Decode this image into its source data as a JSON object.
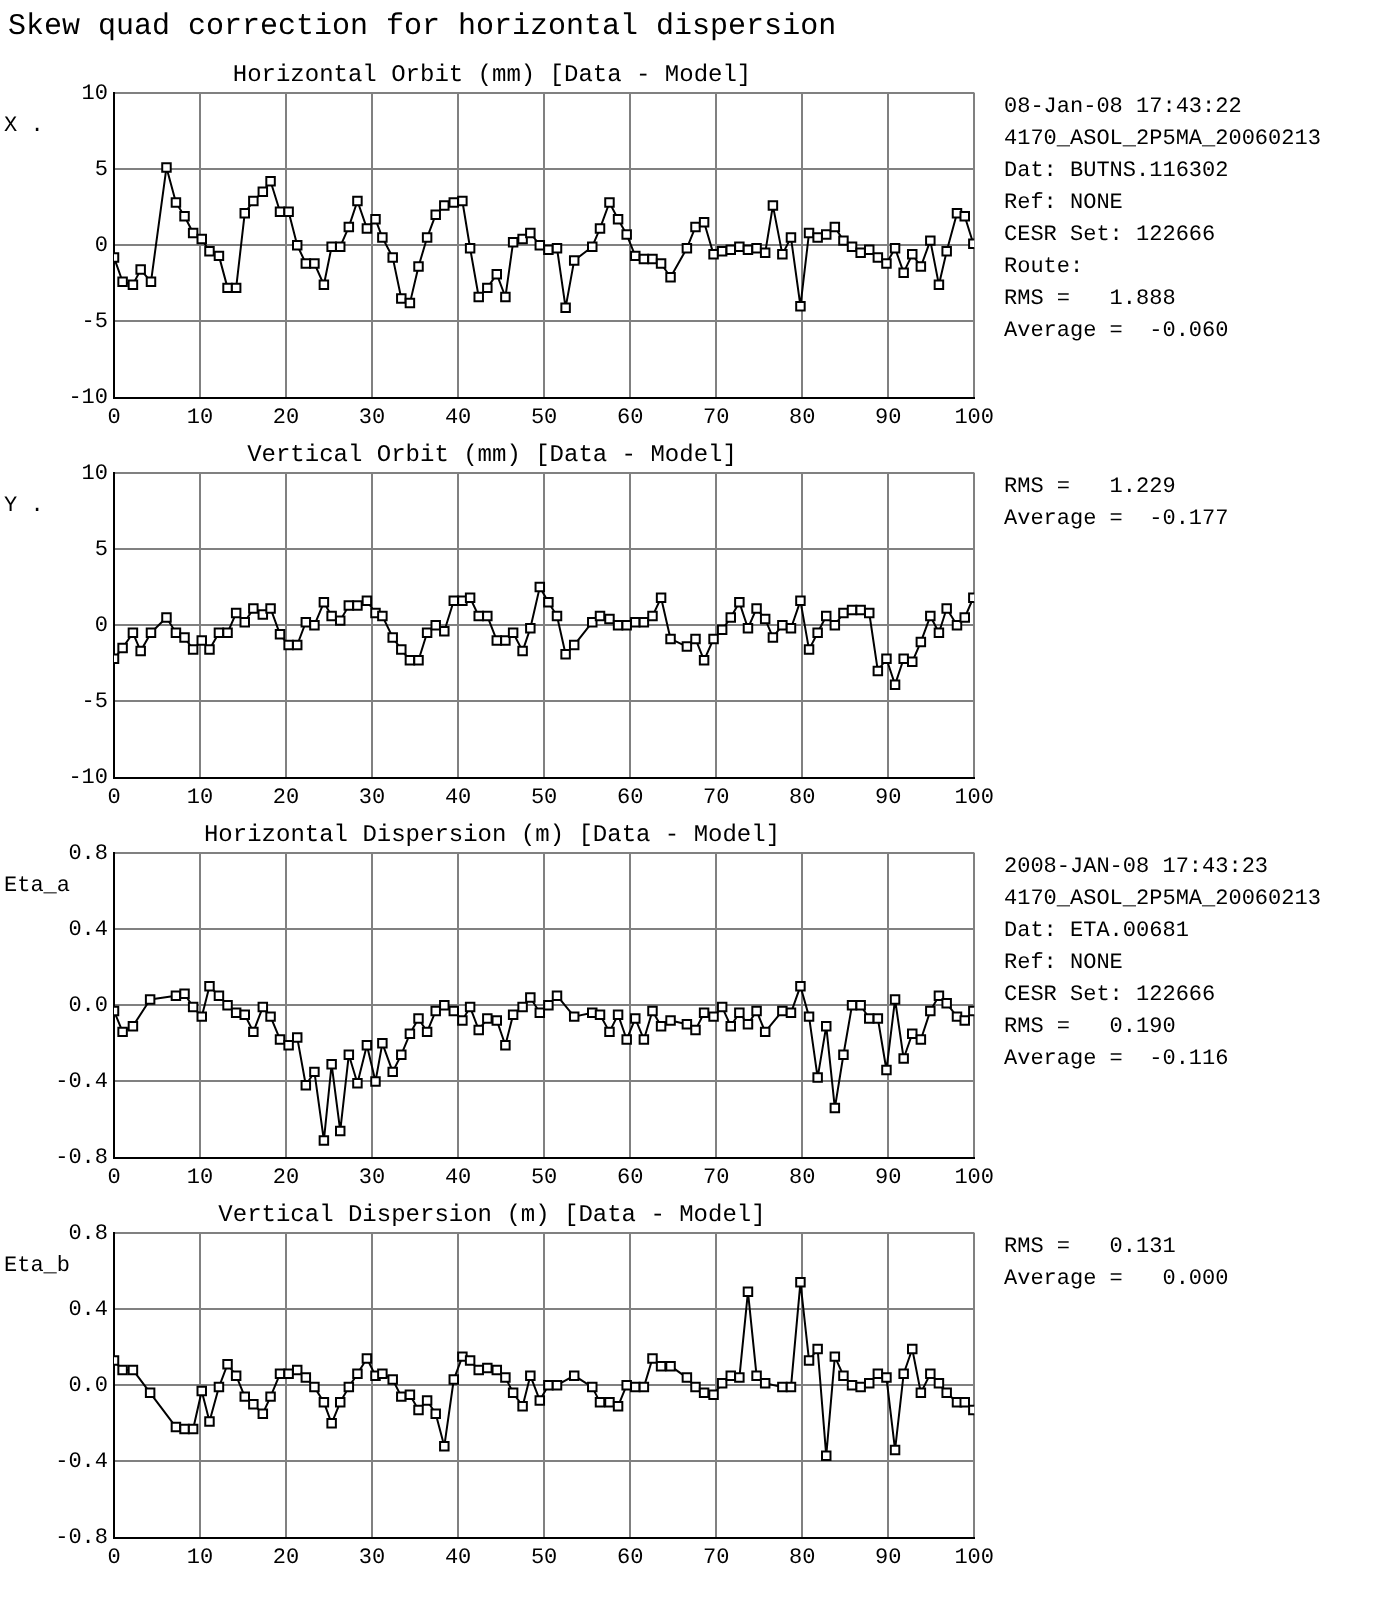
{
  "chart_data": [
    {
      "type": "line",
      "title": "Horizontal Orbit (mm) [Data - Model]",
      "ylabel": "X .",
      "marker": "square",
      "grid": true,
      "xlim": [
        0,
        100
      ],
      "xticks": [
        0,
        10,
        20,
        30,
        40,
        50,
        60,
        70,
        80,
        90,
        100
      ],
      "ylim": [
        -10,
        10
      ],
      "yticks": [
        -10,
        -5,
        0,
        5,
        10
      ],
      "annotations": [
        "Skew quad correction for horizontal dispersion",
        "08-Jan-08 17:43:22",
        "4170_ASOL_2P5MA_20060213",
        "Dat: BUTNS.116302",
        "Ref: NONE",
        "CESR Set: 122666",
        "Route:",
        "RMS =   1.888",
        "Average =  -0.060"
      ],
      "series": [
        {
          "color": "#000000",
          "x": [
            0,
            1,
            2.2,
            3.1,
            4.3,
            6.1,
            7.2,
            8.2,
            9.2,
            10.2,
            11.1,
            12.2,
            13.2,
            14.2,
            15.2,
            16.2,
            17.3,
            18.2,
            19.3,
            20.3,
            21.3,
            22.3,
            23.3,
            24.4,
            25.3,
            26.3,
            27.3,
            28.3,
            29.4,
            30.4,
            31.2,
            32.4,
            33.4,
            34.4,
            35.4,
            36.4,
            37.4,
            38.4,
            39.5,
            40.5,
            41.4,
            42.4,
            43.4,
            44.5,
            45.5,
            46.4,
            47.5,
            48.4,
            49.5,
            50.5,
            51.5,
            52.5,
            53.5,
            55.6,
            56.5,
            57.6,
            58.6,
            59.6,
            60.6,
            61.6,
            62.6,
            63.6,
            64.7,
            66.6,
            67.6,
            68.6,
            69.7,
            70.7,
            71.7,
            72.7,
            73.7,
            74.7,
            75.7,
            76.6,
            77.7,
            78.7,
            79.8,
            80.8,
            81.8,
            82.8,
            83.8,
            84.8,
            85.8,
            86.8,
            87.8,
            88.8,
            89.8,
            90.8,
            91.8,
            92.8,
            93.8,
            94.9,
            95.9,
            96.8,
            98.0,
            98.9,
            99.9
          ],
          "values": [
            -0.8,
            -2.4,
            -2.6,
            -1.6,
            -2.4,
            5.1,
            2.8,
            1.9,
            0.8,
            0.4,
            -0.4,
            -0.7,
            -2.8,
            -2.8,
            2.1,
            2.9,
            3.5,
            4.2,
            2.2,
            2.2,
            0,
            -1.2,
            -1.2,
            -2.6,
            -0.1,
            -0.1,
            1.2,
            2.9,
            1.1,
            1.7,
            0.5,
            -0.8,
            -3.5,
            -3.8,
            -1.4,
            0.5,
            2.0,
            2.6,
            2.8,
            2.9,
            -0.2,
            -3.4,
            -2.8,
            -1.9,
            -3.4,
            0.2,
            0.4,
            0.8,
            0,
            -0.3,
            -0.2,
            -4.1,
            -1.0,
            -0.1,
            1.1,
            2.8,
            1.7,
            0.7,
            -0.7,
            -0.9,
            -0.9,
            -1.2,
            -2.1,
            -0.2,
            1.2,
            1.5,
            -0.6,
            -0.4,
            -0.3,
            -0.1,
            -0.3,
            -0.2,
            -0.5,
            2.6,
            -0.6,
            0.5,
            -4.0,
            0.8,
            0.5,
            0.7,
            1.2,
            0.3,
            -0.1,
            -0.5,
            -0.3,
            -0.8,
            -1.2,
            -0.2,
            -1.8,
            -0.6,
            -1.4,
            0.3,
            -2.6,
            -0.4,
            2.1,
            1.9,
            0.1
          ]
        }
      ]
    },
    {
      "type": "line",
      "title": "Vertical Orbit (mm) [Data - Model]",
      "ylabel": "Y .",
      "marker": "square",
      "grid": true,
      "xlim": [
        0,
        100
      ],
      "xticks": [
        0,
        10,
        20,
        30,
        40,
        50,
        60,
        70,
        80,
        90,
        100
      ],
      "ylim": [
        -10,
        10
      ],
      "yticks": [
        -10,
        -5,
        0,
        5,
        10
      ],
      "annotations": [
        "RMS =   1.229",
        "Average =  -0.177"
      ],
      "series": [
        {
          "color": "#000000",
          "x": [
            0,
            1,
            2.2,
            3.1,
            4.3,
            6.1,
            7.2,
            8.2,
            9.2,
            10.2,
            11.1,
            12.2,
            13.2,
            14.2,
            15.2,
            16.2,
            17.3,
            18.2,
            19.3,
            20.3,
            21.3,
            22.3,
            23.3,
            24.4,
            25.3,
            26.3,
            27.3,
            28.3,
            29.4,
            30.4,
            31.2,
            32.4,
            33.4,
            34.4,
            35.4,
            36.4,
            37.4,
            38.4,
            39.5,
            40.5,
            41.4,
            42.4,
            43.4,
            44.5,
            45.5,
            46.4,
            47.5,
            48.4,
            49.5,
            50.5,
            51.5,
            52.5,
            53.5,
            55.6,
            56.5,
            57.6,
            58.6,
            59.6,
            60.6,
            61.6,
            62.6,
            63.6,
            64.7,
            66.6,
            67.6,
            68.6,
            69.7,
            70.7,
            71.7,
            72.7,
            73.7,
            74.7,
            75.7,
            76.6,
            77.7,
            78.7,
            79.8,
            80.8,
            81.8,
            82.8,
            83.8,
            84.8,
            85.8,
            86.8,
            87.8,
            88.8,
            89.8,
            90.8,
            91.8,
            92.8,
            93.8,
            94.9,
            95.9,
            96.8,
            98.0,
            98.9,
            99.9
          ],
          "values": [
            -2.2,
            -1.5,
            -0.5,
            -1.7,
            -0.5,
            0.5,
            -0.5,
            -0.8,
            -1.6,
            -1.0,
            -1.6,
            -0.5,
            -0.5,
            0.8,
            0.2,
            1.1,
            0.7,
            1.1,
            -0.6,
            -1.3,
            -1.3,
            0.2,
            0,
            1.5,
            0.6,
            0.3,
            1.3,
            1.3,
            1.6,
            0.8,
            0.6,
            -0.8,
            -1.6,
            -2.3,
            -2.3,
            -0.5,
            0,
            -0.4,
            1.6,
            1.6,
            1.8,
            0.6,
            0.6,
            -1.0,
            -1.0,
            -0.5,
            -1.7,
            -0.2,
            2.5,
            1.5,
            0.6,
            -1.9,
            -1.3,
            0.2,
            0.6,
            0.4,
            0,
            0,
            0.2,
            0.2,
            0.6,
            1.8,
            -0.9,
            -1.4,
            -0.9,
            -2.3,
            -0.9,
            -0.3,
            0.5,
            1.5,
            -0.2,
            1.1,
            0.4,
            -0.8,
            0,
            -0.2,
            1.6,
            -1.6,
            -0.5,
            0.6,
            0,
            0.8,
            1.0,
            1.0,
            0.8,
            -3.0,
            -2.2,
            -3.9,
            -2.2,
            -2.4,
            -1.1,
            0.6,
            -0.5,
            1.1,
            0,
            0.5,
            1.8
          ]
        }
      ]
    },
    {
      "type": "line",
      "title": "Horizontal Dispersion (m) [Data - Model]",
      "ylabel": "Eta_a",
      "marker": "square",
      "grid": true,
      "xlim": [
        0,
        100
      ],
      "xticks": [
        0,
        10,
        20,
        30,
        40,
        50,
        60,
        70,
        80,
        90,
        100
      ],
      "ylim": [
        -0.8,
        0.8
      ],
      "yticks": [
        -0.8,
        -0.4,
        {
          "value": 0,
          "label": "0.0"
        },
        0.4,
        0.8
      ],
      "annotations": [
        "2008-JAN-08 17:43:23",
        "4170_ASOL_2P5MA_20060213",
        "Dat: ETA.00681",
        "Ref: NONE",
        "CESR Set: 122666",
        "RMS =   0.190",
        "Average =  -0.116"
      ],
      "series": [
        {
          "color": "#000000",
          "x": [
            0,
            1,
            2.2,
            4.2,
            7.2,
            8.2,
            9.2,
            10.2,
            11.1,
            12.2,
            13.2,
            14.2,
            15.2,
            16.2,
            17.3,
            18.2,
            19.3,
            20.3,
            21.3,
            22.3,
            23.3,
            24.4,
            25.3,
            26.3,
            27.3,
            28.3,
            29.4,
            30.4,
            31.2,
            32.4,
            33.4,
            34.4,
            35.4,
            36.4,
            37.4,
            38.4,
            39.5,
            40.5,
            41.4,
            42.4,
            43.4,
            44.5,
            45.5,
            46.4,
            47.5,
            48.4,
            49.5,
            50.5,
            51.5,
            53.5,
            55.6,
            56.5,
            57.6,
            58.6,
            59.6,
            60.6,
            61.6,
            62.6,
            63.6,
            64.7,
            66.6,
            67.6,
            68.6,
            69.7,
            70.7,
            71.7,
            72.7,
            73.7,
            74.7,
            75.7,
            77.7,
            78.7,
            79.8,
            80.8,
            81.8,
            82.8,
            83.8,
            84.8,
            85.8,
            86.8,
            87.8,
            88.8,
            89.8,
            90.8,
            91.8,
            92.8,
            93.8,
            94.9,
            95.9,
            96.8,
            98.0,
            98.9,
            99.9
          ],
          "values": [
            -0.03,
            -0.14,
            -0.11,
            0.03,
            0.05,
            0.06,
            -0.01,
            -0.06,
            0.1,
            0.05,
            0,
            -0.04,
            -0.05,
            -0.14,
            -0.01,
            -0.06,
            -0.18,
            -0.21,
            -0.17,
            -0.42,
            -0.35,
            -0.71,
            -0.31,
            -0.66,
            -0.26,
            -0.41,
            -0.21,
            -0.4,
            -0.2,
            -0.35,
            -0.26,
            -0.15,
            -0.07,
            -0.14,
            -0.03,
            0,
            -0.03,
            -0.08,
            -0.01,
            -0.13,
            -0.07,
            -0.08,
            -0.21,
            -0.05,
            -0.01,
            0.04,
            -0.04,
            0,
            0.05,
            -0.06,
            -0.04,
            -0.05,
            -0.14,
            -0.05,
            -0.18,
            -0.07,
            -0.18,
            -0.03,
            -0.11,
            -0.08,
            -0.1,
            -0.13,
            -0.04,
            -0.06,
            -0.01,
            -0.11,
            -0.04,
            -0.1,
            -0.03,
            -0.14,
            -0.03,
            -0.04,
            0.1,
            -0.06,
            -0.38,
            -0.11,
            -0.54,
            -0.26,
            0,
            0,
            -0.07,
            -0.07,
            -0.34,
            0.03,
            -0.28,
            -0.15,
            -0.18,
            -0.03,
            0.05,
            0.01,
            -0.06,
            -0.08,
            -0.03
          ]
        }
      ]
    },
    {
      "type": "line",
      "title": "Vertical Dispersion (m) [Data - Model]",
      "ylabel": "Eta_b",
      "marker": "square",
      "grid": true,
      "xlim": [
        0,
        100
      ],
      "xticks": [
        0,
        10,
        20,
        30,
        40,
        50,
        60,
        70,
        80,
        90,
        100
      ],
      "ylim": [
        -0.8,
        0.8
      ],
      "yticks": [
        -0.8,
        -0.4,
        {
          "value": 0,
          "label": "0.0"
        },
        0.4,
        0.8
      ],
      "annotations": [
        "RMS =   0.131",
        "Average =   0.000"
      ],
      "series": [
        {
          "color": "#000000",
          "x": [
            0,
            1,
            2.2,
            4.2,
            7.2,
            8.2,
            9.2,
            10.2,
            11.1,
            12.2,
            13.2,
            14.2,
            15.2,
            16.2,
            17.3,
            18.2,
            19.3,
            20.3,
            21.3,
            22.3,
            23.3,
            24.4,
            25.3,
            26.3,
            27.3,
            28.3,
            29.4,
            30.4,
            31.2,
            32.4,
            33.4,
            34.4,
            35.4,
            36.4,
            37.4,
            38.4,
            39.5,
            40.5,
            41.4,
            42.4,
            43.4,
            44.5,
            45.5,
            46.4,
            47.5,
            48.4,
            49.5,
            50.5,
            51.5,
            53.5,
            55.6,
            56.5,
            57.6,
            58.6,
            59.6,
            60.6,
            61.6,
            62.6,
            63.6,
            64.7,
            66.6,
            67.6,
            68.6,
            69.7,
            70.7,
            71.7,
            72.7,
            73.7,
            74.7,
            75.7,
            77.7,
            78.7,
            79.8,
            80.8,
            81.8,
            82.8,
            83.8,
            84.8,
            85.8,
            86.8,
            87.8,
            88.8,
            89.8,
            90.8,
            91.8,
            92.8,
            93.8,
            94.9,
            95.9,
            96.8,
            98.0,
            98.9,
            99.9
          ],
          "values": [
            0.13,
            0.08,
            0.08,
            -0.04,
            -0.22,
            -0.23,
            -0.23,
            -0.03,
            -0.19,
            -0.01,
            0.11,
            0.05,
            -0.06,
            -0.1,
            -0.15,
            -0.06,
            0.06,
            0.06,
            0.08,
            0.04,
            -0.01,
            -0.09,
            -0.2,
            -0.09,
            -0.01,
            0.06,
            0.14,
            0.05,
            0.06,
            0.03,
            -0.06,
            -0.05,
            -0.13,
            -0.08,
            -0.15,
            -0.32,
            0.03,
            0.15,
            0.13,
            0.08,
            0.09,
            0.08,
            0.04,
            -0.04,
            -0.11,
            0.05,
            -0.08,
            0,
            0,
            0.05,
            -0.01,
            -0.09,
            -0.09,
            -0.11,
            0,
            -0.01,
            -0.01,
            0.14,
            0.1,
            0.1,
            0.04,
            -0.01,
            -0.04,
            -0.05,
            0.01,
            0.05,
            0.04,
            0.49,
            0.05,
            0.01,
            -0.01,
            -0.01,
            0.54,
            0.13,
            0.19,
            -0.37,
            0.15,
            0.05,
            0,
            -0.01,
            0.01,
            0.06,
            0.04,
            -0.34,
            0.06,
            0.19,
            -0.04,
            0.06,
            0.01,
            -0.04,
            -0.09,
            -0.09,
            -0.13
          ]
        }
      ]
    }
  ]
}
